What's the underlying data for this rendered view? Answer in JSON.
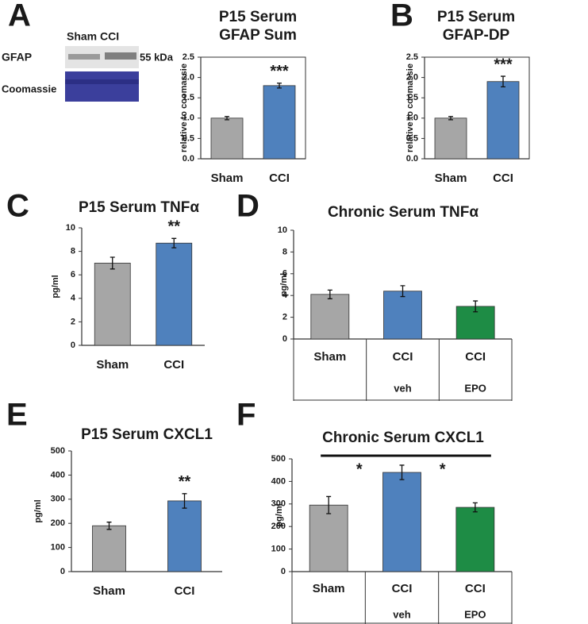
{
  "blot": {
    "lanes": "Sham CCI",
    "band": "GFAP",
    "size": "55 kDa",
    "loading": "Coomassie"
  },
  "chart_data": [
    {
      "type": "bar",
      "panel": "A",
      "title": [
        "P15 Serum",
        "GFAP Sum"
      ],
      "ylabel": "relative to coomassie",
      "categories": [
        "Sham",
        "CCI"
      ],
      "values": [
        1.0,
        1.8
      ],
      "errors": [
        0.04,
        0.06
      ],
      "significance": [
        null,
        "***"
      ],
      "colors": [
        "#a6a6a6",
        "#4f81bd"
      ],
      "frame": true,
      "ylim": [
        0,
        2.5
      ],
      "yticks": [
        {
          "value": 0,
          "label": "0.0"
        },
        0.5,
        {
          "value": 1,
          "label": "1.0"
        },
        1.5,
        {
          "value": 2,
          "label": "2.0"
        },
        2.5
      ]
    },
    {
      "type": "bar",
      "panel": "B",
      "title": [
        "P15 Serum",
        "GFAP-DP"
      ],
      "ylabel": "relative to coomassie",
      "categories": [
        "Sham",
        "CCI"
      ],
      "values": [
        1.0,
        1.9
      ],
      "errors": [
        0.04,
        0.13
      ],
      "significance": [
        null,
        "***"
      ],
      "colors": [
        "#a6a6a6",
        "#4f81bd"
      ],
      "frame": true,
      "ylim": [
        0,
        2.5
      ],
      "yticks": [
        {
          "value": 0,
          "label": "0.0"
        },
        0.5,
        {
          "value": 1,
          "label": "1.0"
        },
        1.5,
        {
          "value": 2,
          "label": "2.0"
        },
        2.5
      ]
    },
    {
      "type": "bar",
      "panel": "C",
      "title": [
        "P15 Serum TNFα"
      ],
      "ylabel": "pg/ml",
      "categories": [
        "Sham",
        "CCI"
      ],
      "values": [
        7.0,
        8.7
      ],
      "errors": [
        0.5,
        0.4
      ],
      "significance": [
        null,
        "**"
      ],
      "colors": [
        "#a6a6a6",
        "#4f81bd"
      ],
      "frame": false,
      "ylim": [
        0,
        10
      ],
      "yticks": [
        0,
        2,
        4,
        6,
        8,
        10
      ]
    },
    {
      "type": "bar",
      "panel": "D",
      "title": [
        "Chronic Serum TNFα"
      ],
      "ylabel": "pg/ml",
      "categories": [
        "Sham",
        "CCI",
        "CCI"
      ],
      "subcategories": [
        null,
        "veh",
        "EPO"
      ],
      "values": [
        4.1,
        4.4,
        3.0
      ],
      "errors": [
        0.4,
        0.5,
        0.5
      ],
      "colors": [
        "#a6a6a6",
        "#4f81bd",
        "#1e8c45"
      ],
      "frame": false,
      "ylim": [
        0,
        10
      ],
      "yticks": [
        0,
        2,
        4,
        6,
        8,
        10
      ]
    },
    {
      "type": "bar",
      "panel": "E",
      "title": [
        "P15 Serum CXCL1"
      ],
      "ylabel": "pg/ml",
      "categories": [
        "Sham",
        "CCI"
      ],
      "values": [
        190,
        293
      ],
      "errors": [
        15,
        30
      ],
      "significance": [
        null,
        "**"
      ],
      "colors": [
        "#a6a6a6",
        "#4f81bd"
      ],
      "frame": false,
      "ylim": [
        0,
        500
      ],
      "yticks": [
        0,
        100,
        200,
        300,
        400,
        500
      ]
    },
    {
      "type": "bar",
      "panel": "F",
      "title": [
        "Chronic Serum CXCL1"
      ],
      "ylabel": "pg/ml",
      "categories": [
        "Sham",
        "CCI",
        "CCI"
      ],
      "subcategories": [
        null,
        "veh",
        "EPO"
      ],
      "values": [
        295,
        440,
        285
      ],
      "errors": [
        38,
        32,
        20
      ],
      "comparisons": [
        {
          "between": [
            0,
            1
          ],
          "label": "*"
        },
        {
          "between": [
            1,
            2
          ],
          "label": "*"
        }
      ],
      "colors": [
        "#a6a6a6",
        "#4f81bd",
        "#1e8c45"
      ],
      "frame": false,
      "ylim": [
        0,
        500
      ],
      "yticks": [
        0,
        100,
        200,
        300,
        400,
        500
      ]
    }
  ]
}
